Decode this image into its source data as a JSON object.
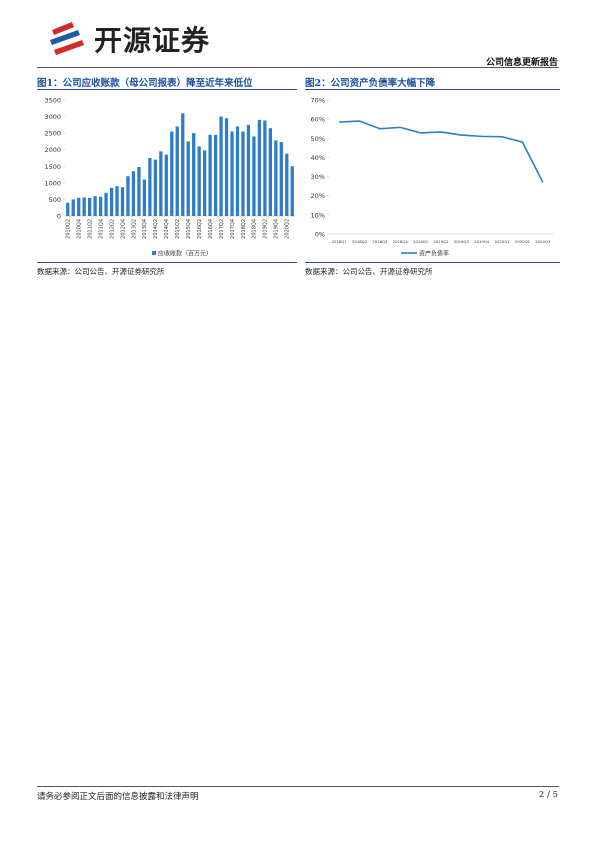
{
  "header": {
    "brand": "开源证券",
    "report_type": "公司信息更新报告"
  },
  "chart_data": [
    {
      "type": "bar",
      "title": "图1：公司应收账款（母公司报表）降至近年来低位",
      "categories": [
        "2010Q2",
        null,
        "2010Q4",
        null,
        "2011Q2",
        null,
        "2011Q4",
        null,
        "2012Q2",
        null,
        "2012Q4",
        null,
        "2013Q2",
        null,
        "2013Q4",
        null,
        "2014Q2",
        null,
        "2014Q4",
        null,
        "2015Q2",
        null,
        "2015Q4",
        null,
        "2016Q2",
        null,
        "2016Q4",
        null,
        "2017Q2",
        null,
        "2017Q4",
        null,
        "2018Q2",
        null,
        "2018Q4",
        null,
        "2019Q2",
        null,
        "2019Q4",
        null,
        "2020Q2",
        null
      ],
      "series": [
        {
          "name": "应收账款（百万元）",
          "color": "#2e7dc6",
          "values": [
            400,
            500,
            550,
            560,
            550,
            600,
            580,
            700,
            850,
            900,
            870,
            1200,
            1350,
            1480,
            1100,
            1750,
            1700,
            1950,
            1850,
            2550,
            2700,
            3100,
            2250,
            2500,
            2100,
            1980,
            2450,
            2450,
            3000,
            2950,
            2550,
            2700,
            2550,
            2750,
            2400,
            2900,
            2880,
            2650,
            2280,
            2230,
            1880,
            1500
          ]
        }
      ],
      "ylim": [
        0,
        3500
      ],
      "yticks": [
        0,
        500,
        1000,
        1500,
        2000,
        2500,
        3000,
        3500
      ],
      "source": "数据来源：公司公告、开源证券研究所"
    },
    {
      "type": "line",
      "title": "图2：公司资产负债率大幅下降",
      "categories": [
        "2018Q1",
        "2018Q2",
        "2018Q3",
        "2018Q4",
        "2019Q1",
        "2019Q2",
        "2019Q3",
        "2019Q4",
        "2020Q1",
        "2020Q2",
        "2020Q3"
      ],
      "series": [
        {
          "name": "资产负债率",
          "color": "#2e7dc6",
          "values": [
            58.5,
            59,
            55,
            55.7,
            52.8,
            53.3,
            51.7,
            51,
            50.8,
            48,
            27
          ]
        }
      ],
      "ylim": [
        0,
        70
      ],
      "yticks": [
        {
          "value": 0,
          "label": "0%"
        },
        {
          "value": 10,
          "label": "10%"
        },
        {
          "value": 20,
          "label": "20%"
        },
        {
          "value": 30,
          "label": "30%"
        },
        {
          "value": 40,
          "label": "40%"
        },
        {
          "value": 50,
          "label": "50%"
        },
        {
          "value": 60,
          "label": "60%"
        },
        {
          "value": 70,
          "label": "70%"
        }
      ],
      "source": "数据来源：公司公告、开源证券研究所"
    }
  ],
  "footer": {
    "disclaimer": "请务必参阅正文后面的信息披露和法律声明",
    "page": "2 / 5"
  }
}
